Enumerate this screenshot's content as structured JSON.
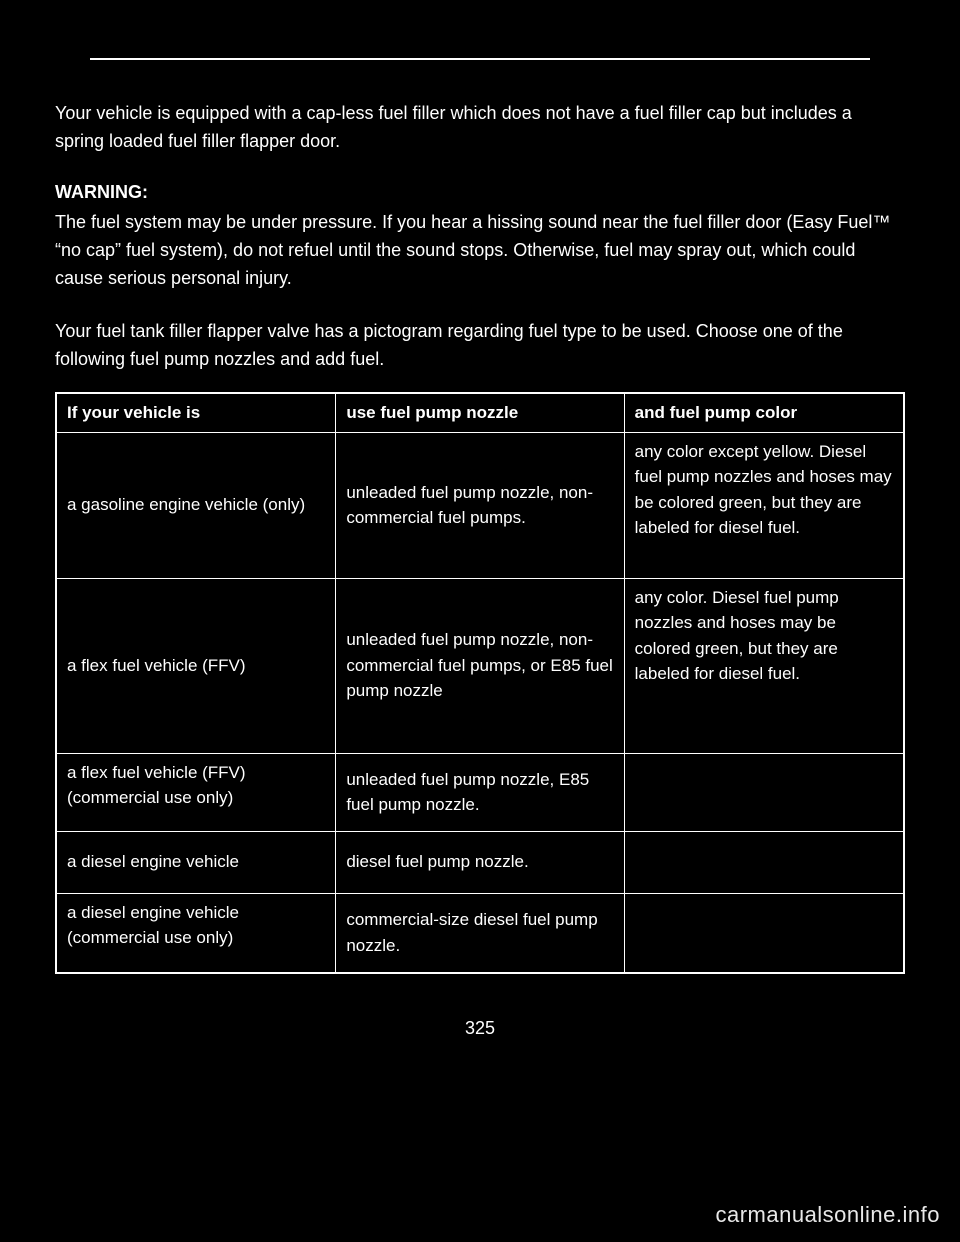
{
  "intro": "Your vehicle is equipped with a cap-less fuel filler which does not have a fuel filler cap but includes a spring loaded fuel filler flapper door.",
  "warning": {
    "label": "WARNING:",
    "text": "The fuel system may be under pressure. If you hear a hissing sound near the fuel filler door (Easy Fuel™ “no cap” fuel system), do not refuel until the sound stops. Otherwise, fuel may spray out, which could cause serious personal injury."
  },
  "tableIntro": "Your fuel tank filler flapper valve has a pictogram regarding fuel type to be used. Choose one of the following fuel pump nozzles and add fuel.",
  "table": {
    "headers": [
      "If your vehicle is",
      "use fuel pump nozzle",
      "and fuel pump color"
    ],
    "rows": [
      [
        "a gasoline engine vehicle (only)",
        "unleaded fuel pump nozzle, non-commercial fuel pumps.",
        "any color except yellow. Diesel fuel pump nozzles and hoses may be colored green, but they are labeled for diesel fuel."
      ],
      [
        "a flex fuel vehicle (FFV)",
        "unleaded fuel pump nozzle, non-commercial fuel pumps, or E85 fuel pump nozzle",
        "any color. Diesel fuel pump nozzles and hoses may be colored green, but they are labeled for diesel fuel."
      ],
      [
        "a flex fuel vehicle (FFV) (commercial use only)",
        "unleaded fuel pump nozzle, E85 fuel pump nozzle.",
        ""
      ],
      [
        "a diesel engine vehicle",
        "diesel fuel pump nozzle.",
        ""
      ],
      [
        "a diesel engine vehicle (commercial use only)",
        "commercial-size diesel fuel pump nozzle.",
        ""
      ]
    ]
  },
  "pageNumber": "325",
  "watermark": "carmanualsonline.info"
}
